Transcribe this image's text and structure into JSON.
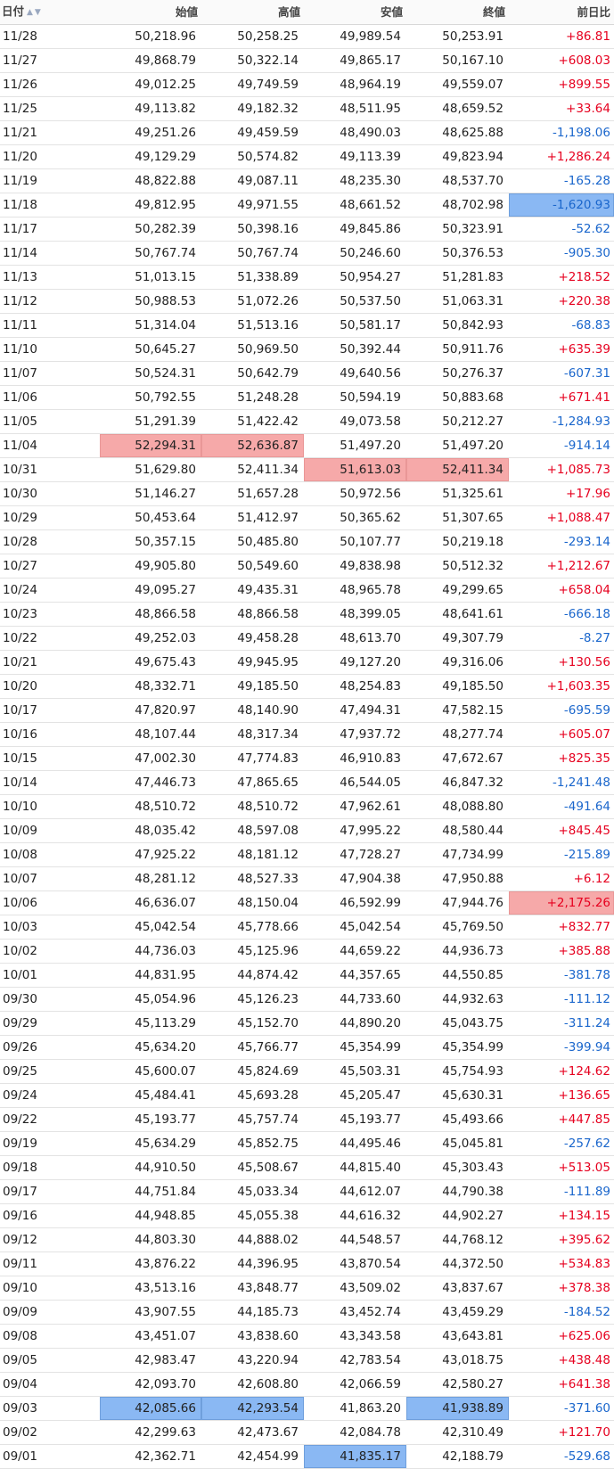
{
  "headers": {
    "date": "日付",
    "open": "始値",
    "high": "高値",
    "low": "安値",
    "close": "終値",
    "change": "前日比"
  },
  "sort_icons": "▲▼",
  "colors": {
    "up": "#e6001f",
    "down": "#1a66cc",
    "highlight_high": "#f6a9a9",
    "highlight_low": "#8ab8f3"
  },
  "rows": [
    {
      "date": "11/28",
      "open": "50,218.96",
      "high": "50,258.25",
      "low": "49,989.54",
      "close": "50,253.91",
      "change": "+86.81"
    },
    {
      "date": "11/27",
      "open": "49,868.79",
      "high": "50,322.14",
      "low": "49,865.17",
      "close": "50,167.10",
      "change": "+608.03"
    },
    {
      "date": "11/26",
      "open": "49,012.25",
      "high": "49,749.59",
      "low": "48,964.19",
      "close": "49,559.07",
      "change": "+899.55"
    },
    {
      "date": "11/25",
      "open": "49,113.82",
      "high": "49,182.32",
      "low": "48,511.95",
      "close": "48,659.52",
      "change": "+33.64"
    },
    {
      "date": "11/21",
      "open": "49,251.26",
      "high": "49,459.59",
      "low": "48,490.03",
      "close": "48,625.88",
      "change": "-1,198.06"
    },
    {
      "date": "11/20",
      "open": "49,129.29",
      "high": "50,574.82",
      "low": "49,113.39",
      "close": "49,823.94",
      "change": "+1,286.24"
    },
    {
      "date": "11/19",
      "open": "48,822.88",
      "high": "49,087.11",
      "low": "48,235.30",
      "close": "48,537.70",
      "change": "-165.28"
    },
    {
      "date": "11/18",
      "open": "49,812.95",
      "high": "49,971.55",
      "low": "48,661.52",
      "close": "48,702.98",
      "change": "-1,620.93",
      "hl": {
        "change": "blue"
      }
    },
    {
      "date": "11/17",
      "open": "50,282.39",
      "high": "50,398.16",
      "low": "49,845.86",
      "close": "50,323.91",
      "change": "-52.62"
    },
    {
      "date": "11/14",
      "open": "50,767.74",
      "high": "50,767.74",
      "low": "50,246.60",
      "close": "50,376.53",
      "change": "-905.30"
    },
    {
      "date": "11/13",
      "open": "51,013.15",
      "high": "51,338.89",
      "low": "50,954.27",
      "close": "51,281.83",
      "change": "+218.52"
    },
    {
      "date": "11/12",
      "open": "50,988.53",
      "high": "51,072.26",
      "low": "50,537.50",
      "close": "51,063.31",
      "change": "+220.38"
    },
    {
      "date": "11/11",
      "open": "51,314.04",
      "high": "51,513.16",
      "low": "50,581.17",
      "close": "50,842.93",
      "change": "-68.83"
    },
    {
      "date": "11/10",
      "open": "50,645.27",
      "high": "50,969.50",
      "low": "50,392.44",
      "close": "50,911.76",
      "change": "+635.39"
    },
    {
      "date": "11/07",
      "open": "50,524.31",
      "high": "50,642.79",
      "low": "49,640.56",
      "close": "50,276.37",
      "change": "-607.31"
    },
    {
      "date": "11/06",
      "open": "50,792.55",
      "high": "51,248.28",
      "low": "50,594.19",
      "close": "50,883.68",
      "change": "+671.41"
    },
    {
      "date": "11/05",
      "open": "51,291.39",
      "high": "51,422.42",
      "low": "49,073.58",
      "close": "50,212.27",
      "change": "-1,284.93"
    },
    {
      "date": "11/04",
      "open": "52,294.31",
      "high": "52,636.87",
      "low": "51,497.20",
      "close": "51,497.20",
      "change": "-914.14",
      "hl": {
        "open": "red",
        "high": "red"
      }
    },
    {
      "date": "10/31",
      "open": "51,629.80",
      "high": "52,411.34",
      "low": "51,613.03",
      "close": "52,411.34",
      "change": "+1,085.73",
      "hl": {
        "low": "red",
        "close": "red"
      }
    },
    {
      "date": "10/30",
      "open": "51,146.27",
      "high": "51,657.28",
      "low": "50,972.56",
      "close": "51,325.61",
      "change": "+17.96"
    },
    {
      "date": "10/29",
      "open": "50,453.64",
      "high": "51,412.97",
      "low": "50,365.62",
      "close": "51,307.65",
      "change": "+1,088.47"
    },
    {
      "date": "10/28",
      "open": "50,357.15",
      "high": "50,485.80",
      "low": "50,107.77",
      "close": "50,219.18",
      "change": "-293.14"
    },
    {
      "date": "10/27",
      "open": "49,905.80",
      "high": "50,549.60",
      "low": "49,838.98",
      "close": "50,512.32",
      "change": "+1,212.67"
    },
    {
      "date": "10/24",
      "open": "49,095.27",
      "high": "49,435.31",
      "low": "48,965.78",
      "close": "49,299.65",
      "change": "+658.04"
    },
    {
      "date": "10/23",
      "open": "48,866.58",
      "high": "48,866.58",
      "low": "48,399.05",
      "close": "48,641.61",
      "change": "-666.18"
    },
    {
      "date": "10/22",
      "open": "49,252.03",
      "high": "49,458.28",
      "low": "48,613.70",
      "close": "49,307.79",
      "change": "-8.27"
    },
    {
      "date": "10/21",
      "open": "49,675.43",
      "high": "49,945.95",
      "low": "49,127.20",
      "close": "49,316.06",
      "change": "+130.56"
    },
    {
      "date": "10/20",
      "open": "48,332.71",
      "high": "49,185.50",
      "low": "48,254.83",
      "close": "49,185.50",
      "change": "+1,603.35"
    },
    {
      "date": "10/17",
      "open": "47,820.97",
      "high": "48,140.90",
      "low": "47,494.31",
      "close": "47,582.15",
      "change": "-695.59"
    },
    {
      "date": "10/16",
      "open": "48,107.44",
      "high": "48,317.34",
      "low": "47,937.72",
      "close": "48,277.74",
      "change": "+605.07"
    },
    {
      "date": "10/15",
      "open": "47,002.30",
      "high": "47,774.83",
      "low": "46,910.83",
      "close": "47,672.67",
      "change": "+825.35"
    },
    {
      "date": "10/14",
      "open": "47,446.73",
      "high": "47,865.65",
      "low": "46,544.05",
      "close": "46,847.32",
      "change": "-1,241.48"
    },
    {
      "date": "10/10",
      "open": "48,510.72",
      "high": "48,510.72",
      "low": "47,962.61",
      "close": "48,088.80",
      "change": "-491.64"
    },
    {
      "date": "10/09",
      "open": "48,035.42",
      "high": "48,597.08",
      "low": "47,995.22",
      "close": "48,580.44",
      "change": "+845.45"
    },
    {
      "date": "10/08",
      "open": "47,925.22",
      "high": "48,181.12",
      "low": "47,728.27",
      "close": "47,734.99",
      "change": "-215.89"
    },
    {
      "date": "10/07",
      "open": "48,281.12",
      "high": "48,527.33",
      "low": "47,904.38",
      "close": "47,950.88",
      "change": "+6.12"
    },
    {
      "date": "10/06",
      "open": "46,636.07",
      "high": "48,150.04",
      "low": "46,592.99",
      "close": "47,944.76",
      "change": "+2,175.26",
      "hl": {
        "change": "red"
      }
    },
    {
      "date": "10/03",
      "open": "45,042.54",
      "high": "45,778.66",
      "low": "45,042.54",
      "close": "45,769.50",
      "change": "+832.77"
    },
    {
      "date": "10/02",
      "open": "44,736.03",
      "high": "45,125.96",
      "low": "44,659.22",
      "close": "44,936.73",
      "change": "+385.88"
    },
    {
      "date": "10/01",
      "open": "44,831.95",
      "high": "44,874.42",
      "low": "44,357.65",
      "close": "44,550.85",
      "change": "-381.78"
    },
    {
      "date": "09/30",
      "open": "45,054.96",
      "high": "45,126.23",
      "low": "44,733.60",
      "close": "44,932.63",
      "change": "-111.12"
    },
    {
      "date": "09/29",
      "open": "45,113.29",
      "high": "45,152.70",
      "low": "44,890.20",
      "close": "45,043.75",
      "change": "-311.24"
    },
    {
      "date": "09/26",
      "open": "45,634.20",
      "high": "45,766.77",
      "low": "45,354.99",
      "close": "45,354.99",
      "change": "-399.94"
    },
    {
      "date": "09/25",
      "open": "45,600.07",
      "high": "45,824.69",
      "low": "45,503.31",
      "close": "45,754.93",
      "change": "+124.62"
    },
    {
      "date": "09/24",
      "open": "45,484.41",
      "high": "45,693.28",
      "low": "45,205.47",
      "close": "45,630.31",
      "change": "+136.65"
    },
    {
      "date": "09/22",
      "open": "45,193.77",
      "high": "45,757.74",
      "low": "45,193.77",
      "close": "45,493.66",
      "change": "+447.85"
    },
    {
      "date": "09/19",
      "open": "45,634.29",
      "high": "45,852.75",
      "low": "44,495.46",
      "close": "45,045.81",
      "change": "-257.62"
    },
    {
      "date": "09/18",
      "open": "44,910.50",
      "high": "45,508.67",
      "low": "44,815.40",
      "close": "45,303.43",
      "change": "+513.05"
    },
    {
      "date": "09/17",
      "open": "44,751.84",
      "high": "45,033.34",
      "low": "44,612.07",
      "close": "44,790.38",
      "change": "-111.89"
    },
    {
      "date": "09/16",
      "open": "44,948.85",
      "high": "45,055.38",
      "low": "44,616.32",
      "close": "44,902.27",
      "change": "+134.15"
    },
    {
      "date": "09/12",
      "open": "44,803.30",
      "high": "44,888.02",
      "low": "44,548.57",
      "close": "44,768.12",
      "change": "+395.62"
    },
    {
      "date": "09/11",
      "open": "43,876.22",
      "high": "44,396.95",
      "low": "43,870.54",
      "close": "44,372.50",
      "change": "+534.83"
    },
    {
      "date": "09/10",
      "open": "43,513.16",
      "high": "43,848.77",
      "low": "43,509.02",
      "close": "43,837.67",
      "change": "+378.38"
    },
    {
      "date": "09/09",
      "open": "43,907.55",
      "high": "44,185.73",
      "low": "43,452.74",
      "close": "43,459.29",
      "change": "-184.52"
    },
    {
      "date": "09/08",
      "open": "43,451.07",
      "high": "43,838.60",
      "low": "43,343.58",
      "close": "43,643.81",
      "change": "+625.06"
    },
    {
      "date": "09/05",
      "open": "42,983.47",
      "high": "43,220.94",
      "low": "42,783.54",
      "close": "43,018.75",
      "change": "+438.48"
    },
    {
      "date": "09/04",
      "open": "42,093.70",
      "high": "42,608.80",
      "low": "42,066.59",
      "close": "42,580.27",
      "change": "+641.38"
    },
    {
      "date": "09/03",
      "open": "42,085.66",
      "high": "42,293.54",
      "low": "41,863.20",
      "close": "41,938.89",
      "change": "-371.60",
      "hl": {
        "open": "blue",
        "high": "blue",
        "close": "blue"
      }
    },
    {
      "date": "09/02",
      "open": "42,299.63",
      "high": "42,473.67",
      "low": "42,084.78",
      "close": "42,310.49",
      "change": "+121.70"
    },
    {
      "date": "09/01",
      "open": "42,362.71",
      "high": "42,454.99",
      "low": "41,835.17",
      "close": "42,188.79",
      "change": "-529.68",
      "hl": {
        "low": "blue"
      }
    }
  ]
}
